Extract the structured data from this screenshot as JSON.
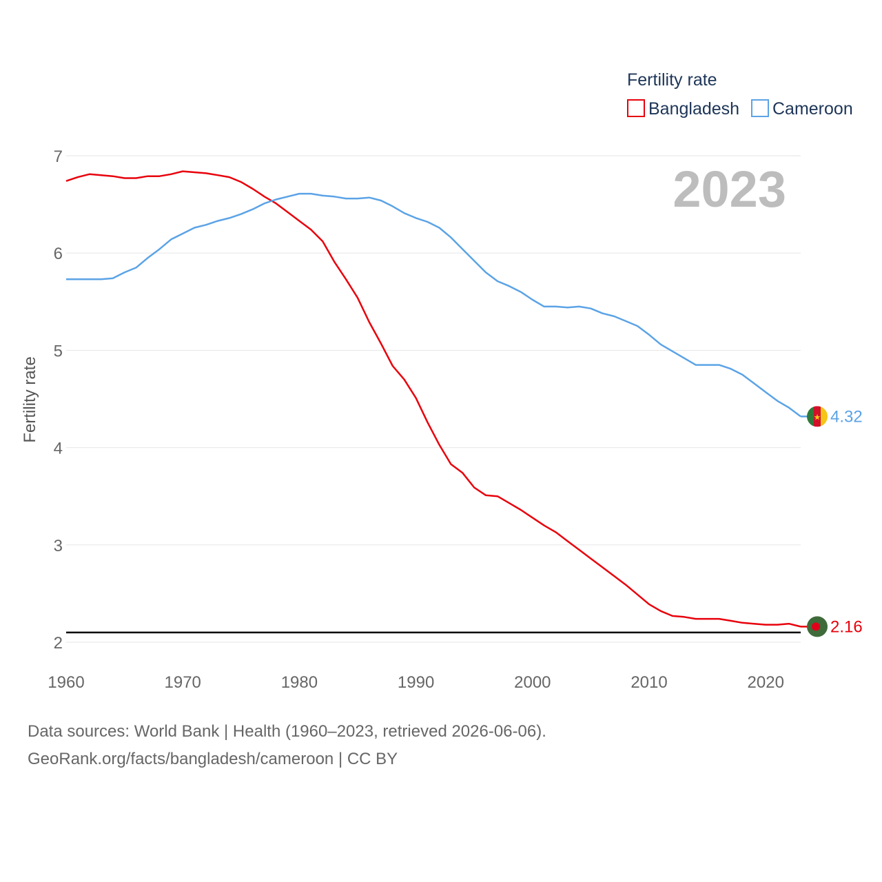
{
  "chart_data": {
    "type": "line",
    "ylabel": "Fertility rate",
    "ylim": [
      2,
      7
    ],
    "xlim": [
      1960,
      2023
    ],
    "yticks": [
      "2",
      "3",
      "4",
      "5",
      "6",
      "7"
    ],
    "xticks": [
      "1960",
      "1970",
      "1980",
      "1990",
      "2000",
      "2010",
      "2020"
    ],
    "current_year": "2023",
    "reference_line": 2.1,
    "legend": {
      "title": "Fertility rate",
      "position": "top-right"
    },
    "x": [
      1960,
      1961,
      1962,
      1963,
      1964,
      1965,
      1966,
      1967,
      1968,
      1969,
      1970,
      1971,
      1972,
      1973,
      1974,
      1975,
      1976,
      1977,
      1978,
      1979,
      1980,
      1981,
      1982,
      1983,
      1984,
      1985,
      1986,
      1987,
      1988,
      1989,
      1990,
      1991,
      1992,
      1993,
      1994,
      1995,
      1996,
      1997,
      1998,
      1999,
      2000,
      2001,
      2002,
      2003,
      2004,
      2005,
      2006,
      2007,
      2008,
      2009,
      2010,
      2011,
      2012,
      2013,
      2014,
      2015,
      2016,
      2017,
      2018,
      2019,
      2020,
      2021,
      2022,
      2023
    ],
    "series": [
      {
        "name": "Bangladesh",
        "color": "#e8000b",
        "end_label": "2.16",
        "flag": "bangladesh-flag",
        "values": [
          6.74,
          6.78,
          6.81,
          6.8,
          6.79,
          6.77,
          6.77,
          6.79,
          6.79,
          6.81,
          6.84,
          6.83,
          6.82,
          6.8,
          6.78,
          6.73,
          6.66,
          6.58,
          6.51,
          6.42,
          6.33,
          6.24,
          6.12,
          5.91,
          5.73,
          5.54,
          5.29,
          5.07,
          4.84,
          4.7,
          4.51,
          4.26,
          4.03,
          3.83,
          3.74,
          3.59,
          3.51,
          3.5,
          3.43,
          3.36,
          3.28,
          3.2,
          3.13,
          3.04,
          2.95,
          2.86,
          2.77,
          2.68,
          2.59,
          2.49,
          2.39,
          2.32,
          2.27,
          2.26,
          2.24,
          2.24,
          2.24,
          2.22,
          2.2,
          2.19,
          2.18,
          2.18,
          2.19,
          2.16
        ]
      },
      {
        "name": "Cameroon",
        "color": "#5ba3e6",
        "end_label": "4.32",
        "flag": "cameroon-flag",
        "values": [
          5.73,
          5.73,
          5.73,
          5.73,
          5.74,
          5.8,
          5.85,
          5.95,
          6.04,
          6.14,
          6.2,
          6.26,
          6.29,
          6.33,
          6.36,
          6.4,
          6.45,
          6.51,
          6.55,
          6.58,
          6.61,
          6.61,
          6.59,
          6.58,
          6.56,
          6.56,
          6.57,
          6.54,
          6.48,
          6.41,
          6.36,
          6.32,
          6.26,
          6.16,
          6.04,
          5.92,
          5.8,
          5.71,
          5.66,
          5.6,
          5.52,
          5.45,
          5.45,
          5.44,
          5.45,
          5.43,
          5.38,
          5.35,
          5.3,
          5.25,
          5.16,
          5.06,
          4.99,
          4.92,
          4.85,
          4.85,
          4.85,
          4.81,
          4.75,
          4.66,
          4.57,
          4.48,
          4.41,
          4.32
        ]
      }
    ]
  },
  "footer": {
    "line1": "Data sources: World Bank | Health (1960–2023, retrieved 2026-06-06).",
    "line2": "GeoRank.org/facts/bangladesh/cameroon | CC BY"
  }
}
